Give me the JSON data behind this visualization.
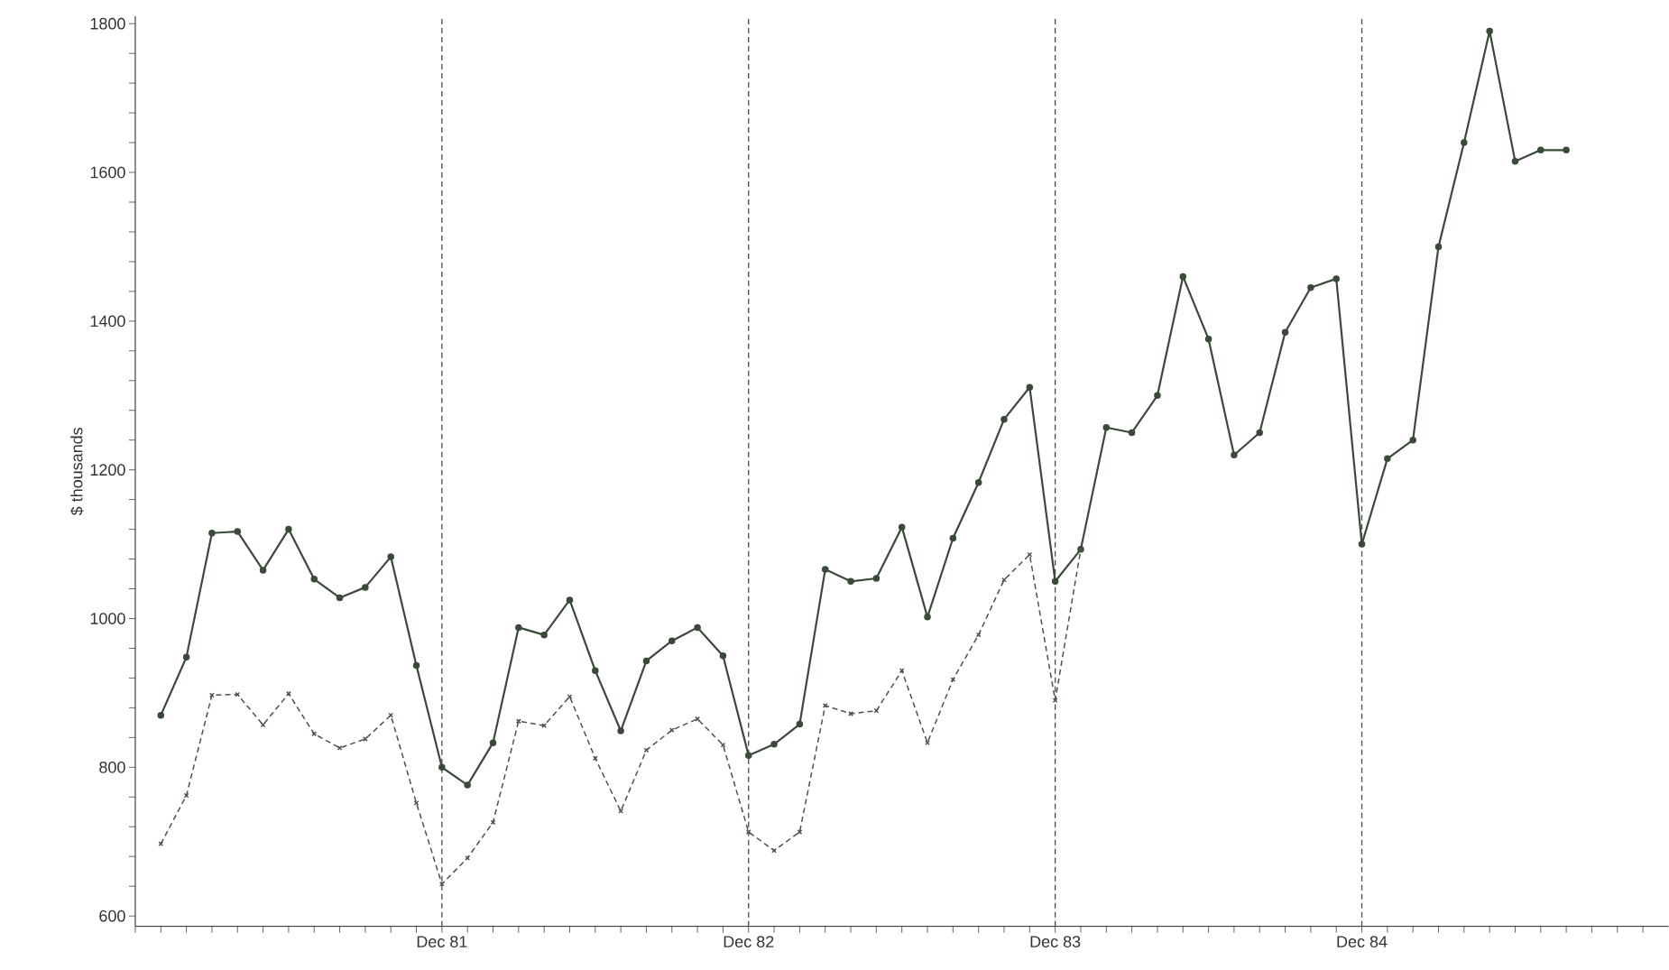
{
  "chart_data": {
    "type": "line",
    "ylabel": "$ thousands",
    "x": [
      "1981-01",
      "1981-02",
      "1981-03",
      "1981-04",
      "1981-05",
      "1981-06",
      "1981-07",
      "1981-08",
      "1981-09",
      "1981-10",
      "1981-11",
      "1981-12",
      "1982-01",
      "1982-02",
      "1982-03",
      "1982-04",
      "1982-05",
      "1982-06",
      "1982-07",
      "1982-08",
      "1982-09",
      "1982-10",
      "1982-11",
      "1982-12",
      "1983-01",
      "1983-02",
      "1983-03",
      "1983-04",
      "1983-05",
      "1983-06",
      "1983-07",
      "1983-08",
      "1983-09",
      "1983-10",
      "1983-11",
      "1983-12",
      "1984-01",
      "1984-02",
      "1984-03",
      "1984-04",
      "1984-05",
      "1984-06",
      "1984-07",
      "1984-08",
      "1984-09",
      "1984-10",
      "1984-11",
      "1984-12",
      "1985-01",
      "1985-02",
      "1985-03",
      "1985-04",
      "1985-05",
      "1985-06",
      "1985-07",
      "1985-08"
    ],
    "series": [
      {
        "color": "#3a4a38",
        "marker": "circle",
        "line_style": "solid",
        "values": [
          870,
          948,
          1115,
          1117,
          1065,
          1120,
          1053,
          1028,
          1042,
          1083,
          937,
          800,
          776,
          833,
          988,
          978,
          1025,
          930,
          849,
          943,
          970,
          988,
          950,
          816,
          831,
          858,
          1066,
          1050,
          1054,
          1123,
          1002,
          1108,
          1183,
          1268,
          1311,
          1050,
          1093,
          1257,
          1250,
          1300,
          1460,
          1376,
          1220,
          1250,
          1385,
          1445,
          1457,
          1100,
          1215,
          1240,
          1500,
          1640,
          1790,
          1615,
          1630,
          1630
        ]
      },
      {
        "color": "#4a5448",
        "marker": "cross",
        "line_style": "dashed",
        "values": [
          697,
          762,
          897,
          898,
          857,
          899,
          845,
          826,
          838,
          870,
          752,
          643,
          678,
          726,
          862,
          856,
          895,
          812,
          741,
          823,
          850,
          865,
          830,
          713,
          688,
          713,
          883,
          872,
          876,
          930,
          833,
          918,
          978,
          1052,
          1086,
          890,
          1093,
          null,
          null,
          null,
          null,
          null,
          null,
          null,
          null,
          null,
          null,
          null,
          null,
          null,
          null,
          null,
          null,
          null,
          null,
          null
        ]
      }
    ],
    "xlim": [
      "1980-12",
      "1985-12"
    ],
    "xticks": [
      {
        "value": "1980-12",
        "label": null
      },
      {
        "value": "1981-01",
        "label": null
      },
      {
        "value": "1981-02",
        "label": null
      },
      {
        "value": "1981-03",
        "label": null
      },
      {
        "value": "1981-04",
        "label": null
      },
      {
        "value": "1981-05",
        "label": null
      },
      {
        "value": "1981-06",
        "label": null
      },
      {
        "value": "1981-07",
        "label": null
      },
      {
        "value": "1981-08",
        "label": null
      },
      {
        "value": "1981-09",
        "label": null
      },
      {
        "value": "1981-10",
        "label": null
      },
      {
        "value": "1981-11",
        "label": null
      },
      {
        "value": "1981-12",
        "label": "Dec 81"
      },
      {
        "value": "1982-01",
        "label": null
      },
      {
        "value": "1982-02",
        "label": null
      },
      {
        "value": "1982-03",
        "label": null
      },
      {
        "value": "1982-04",
        "label": null
      },
      {
        "value": "1982-05",
        "label": null
      },
      {
        "value": "1982-06",
        "label": null
      },
      {
        "value": "1982-07",
        "label": null
      },
      {
        "value": "1982-08",
        "label": null
      },
      {
        "value": "1982-09",
        "label": null
      },
      {
        "value": "1982-10",
        "label": null
      },
      {
        "value": "1982-11",
        "label": null
      },
      {
        "value": "1982-12",
        "label": "Dec 82"
      },
      {
        "value": "1983-01",
        "label": null
      },
      {
        "value": "1983-02",
        "label": null
      },
      {
        "value": "1983-03",
        "label": null
      },
      {
        "value": "1983-04",
        "label": null
      },
      {
        "value": "1983-05",
        "label": null
      },
      {
        "value": "1983-06",
        "label": null
      },
      {
        "value": "1983-07",
        "label": null
      },
      {
        "value": "1983-08",
        "label": null
      },
      {
        "value": "1983-09",
        "label": null
      },
      {
        "value": "1983-10",
        "label": null
      },
      {
        "value": "1983-11",
        "label": null
      },
      {
        "value": "1983-12",
        "label": "Dec 83"
      },
      {
        "value": "1984-01",
        "label": null
      },
      {
        "value": "1984-02",
        "label": null
      },
      {
        "value": "1984-03",
        "label": null
      },
      {
        "value": "1984-04",
        "label": null
      },
      {
        "value": "1984-05",
        "label": null
      },
      {
        "value": "1984-06",
        "label": null
      },
      {
        "value": "1984-07",
        "label": null
      },
      {
        "value": "1984-08",
        "label": null
      },
      {
        "value": "1984-09",
        "label": null
      },
      {
        "value": "1984-10",
        "label": null
      },
      {
        "value": "1984-11",
        "label": null
      },
      {
        "value": "1984-12",
        "label": "Dec 84"
      },
      {
        "value": "1985-01",
        "label": null
      },
      {
        "value": "1985-02",
        "label": null
      },
      {
        "value": "1985-03",
        "label": null
      },
      {
        "value": "1985-04",
        "label": null
      },
      {
        "value": "1985-05",
        "label": null
      },
      {
        "value": "1985-06",
        "label": null
      },
      {
        "value": "1985-07",
        "label": null
      },
      {
        "value": "1985-08",
        "label": null
      },
      {
        "value": "1985-09",
        "label": null
      },
      {
        "value": "1985-10",
        "label": null
      },
      {
        "value": "1985-11",
        "label": null
      }
    ],
    "ylim": [
      586,
      1810
    ],
    "yticks": [
      600,
      {
        "value": 640,
        "label": null
      },
      {
        "value": 680,
        "label": null
      },
      {
        "value": 720,
        "label": null
      },
      {
        "value": 760,
        "label": null
      },
      800,
      {
        "value": 840,
        "label": null
      },
      {
        "value": 880,
        "label": null
      },
      {
        "value": 920,
        "label": null
      },
      {
        "value": 960,
        "label": null
      },
      1000,
      {
        "value": 1040,
        "label": null
      },
      {
        "value": 1080,
        "label": null
      },
      {
        "value": 1120,
        "label": null
      },
      {
        "value": 1160,
        "label": null
      },
      1200,
      {
        "value": 1240,
        "label": null
      },
      {
        "value": 1280,
        "label": null
      },
      {
        "value": 1320,
        "label": null
      },
      {
        "value": 1360,
        "label": null
      },
      1400,
      {
        "value": 1440,
        "label": null
      },
      {
        "value": 1480,
        "label": null
      },
      {
        "value": 1520,
        "label": null
      },
      {
        "value": 1560,
        "label": null
      },
      1600,
      {
        "value": 1640,
        "label": null
      },
      {
        "value": 1680,
        "label": null
      },
      {
        "value": 1720,
        "label": null
      },
      {
        "value": 1760,
        "label": null
      },
      1800
    ],
    "ref_lines": [
      {
        "axis": "x",
        "value": "1981-12",
        "line_style": "dashed",
        "color": "#4a4a4a"
      },
      {
        "axis": "x",
        "value": "1982-12",
        "line_style": "dashed",
        "color": "#4a4a4a"
      },
      {
        "axis": "x",
        "value": "1983-12",
        "line_style": "dashed",
        "color": "#4a4a4a"
      },
      {
        "axis": "x",
        "value": "1984-12",
        "line_style": "dashed",
        "color": "#4a4a4a"
      }
    ]
  }
}
